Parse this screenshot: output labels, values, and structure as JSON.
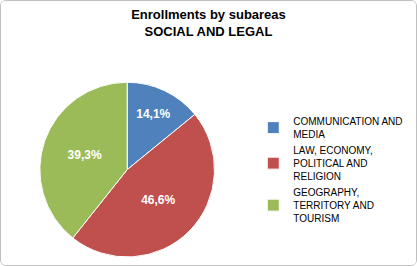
{
  "chart_data": {
    "type": "pie",
    "title": "Enrollments by subareas",
    "subtitle": "SOCIAL AND LEGAL",
    "categories": [
      "COMMUNICATION AND MEDIA",
      "LAW, ECONOMY, POLITICAL AND RELIGION",
      "GEOGRAPHY, TERRITORY AND TOURISM"
    ],
    "values": [
      14.1,
      46.6,
      39.3
    ],
    "value_labels": [
      "14,1%",
      "46,6%",
      "39,3%"
    ],
    "colors": [
      "#4f81bd",
      "#c0504d",
      "#9bbb59"
    ],
    "data_labels": true,
    "legend": "right"
  }
}
